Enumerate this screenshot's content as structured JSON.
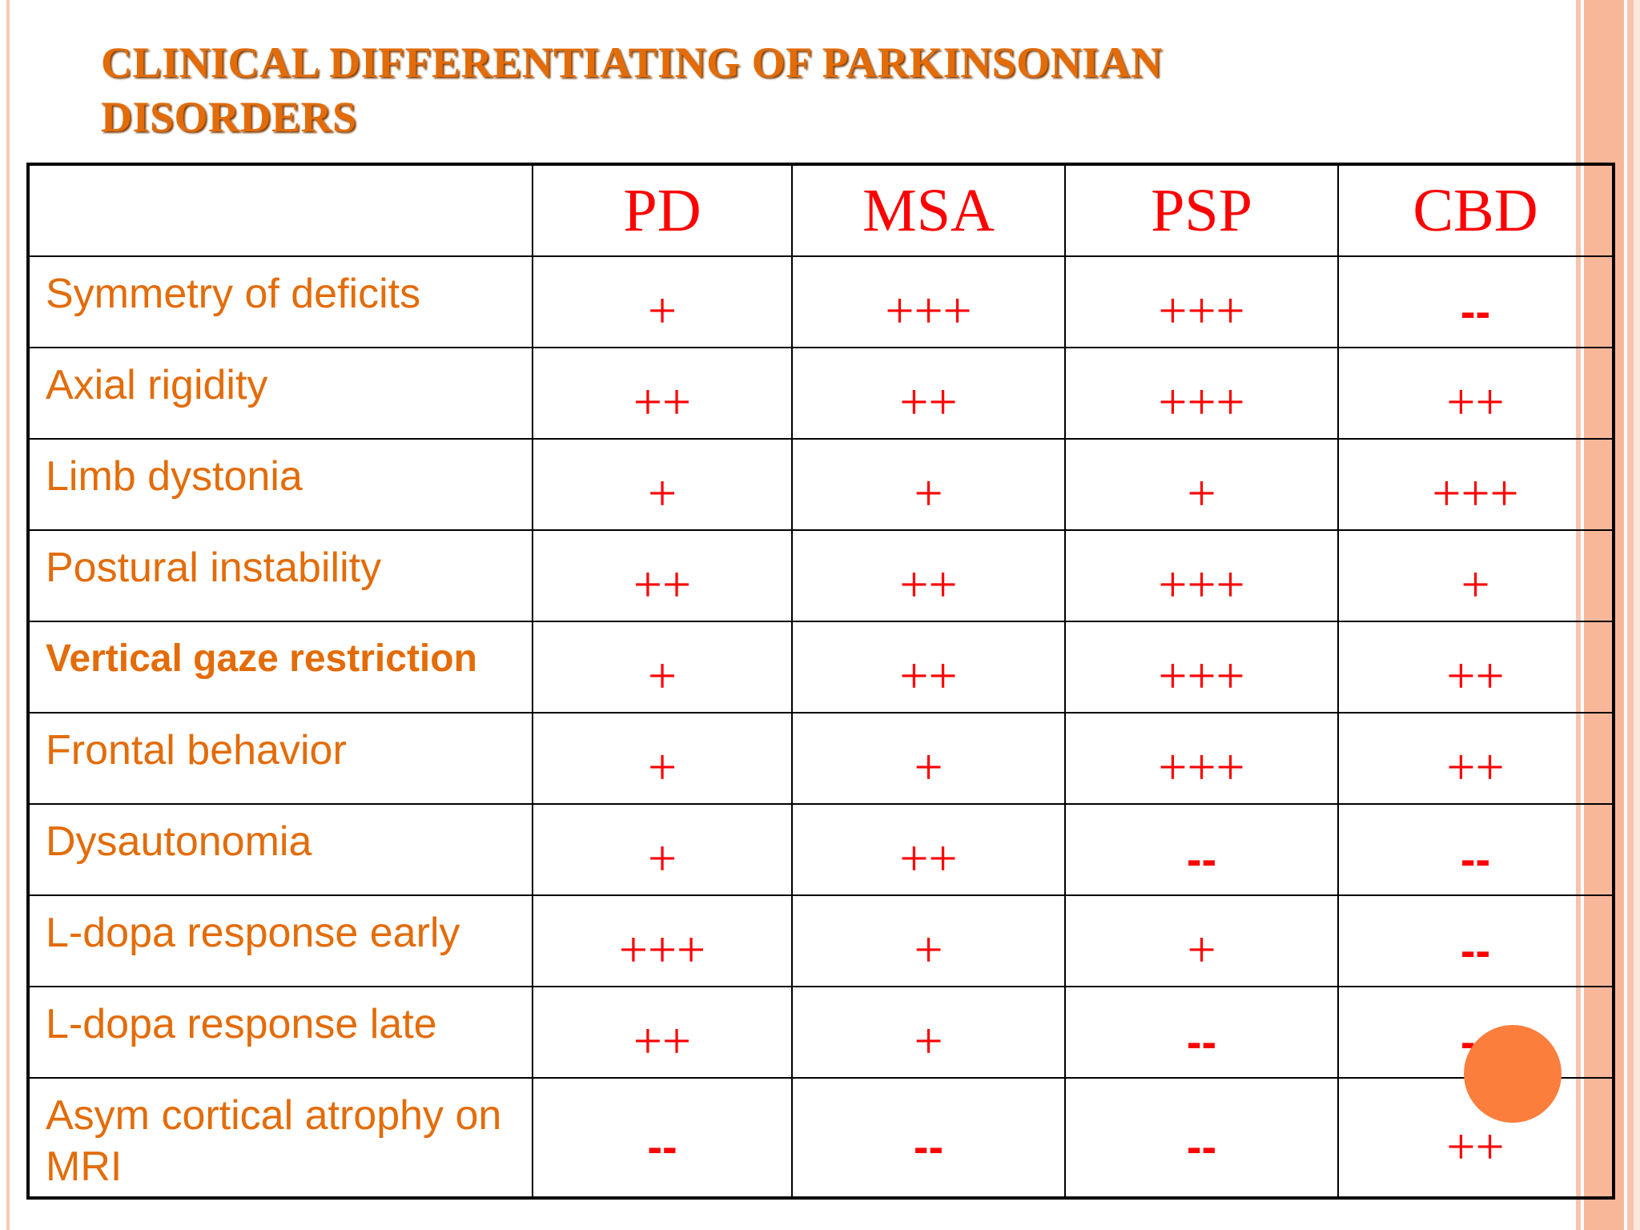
{
  "slide": {
    "title": "CLINICAL DIFFERENTIATING OF PARKINSONIAN DISORDERS"
  },
  "table": {
    "headers": [
      "",
      "PD",
      "MSA",
      "PSP",
      "CBD"
    ],
    "rows": [
      {
        "label": "Symmetry of deficits",
        "values": [
          "+",
          "+++",
          "+++",
          "--"
        ]
      },
      {
        "label": "Axial rigidity",
        "values": [
          "++",
          "++",
          "+++",
          "++"
        ]
      },
      {
        "label": "Limb dystonia",
        "values": [
          "+",
          "+",
          "+",
          "+++"
        ]
      },
      {
        "label": "Postural instability",
        "values": [
          "++",
          "++",
          "+++",
          "+"
        ]
      },
      {
        "label": "Vertical gaze restriction",
        "values": [
          "+",
          "++",
          "+++",
          "++"
        ]
      },
      {
        "label": "Frontal behavior",
        "values": [
          "+",
          "+",
          "+++",
          "++"
        ]
      },
      {
        "label": "Dysautonomia",
        "values": [
          "+",
          "++",
          "--",
          "--"
        ]
      },
      {
        "label": "L-dopa response early",
        "values": [
          "+++",
          "+",
          "+",
          "--"
        ]
      },
      {
        "label": "L-dopa response late",
        "values": [
          "++",
          "+",
          "--",
          "--"
        ]
      },
      {
        "label": "Asym cortical atrophy on MRI",
        "values": [
          "--",
          "--",
          "--",
          "++"
        ]
      }
    ]
  },
  "colors": {
    "title": "#e36c09",
    "header_text": "#ff0000",
    "value_text": "#ff0000",
    "row_label_text": "#e36c09",
    "accent_dot": "#fb7e3c",
    "stripe": "#f9b79a"
  }
}
